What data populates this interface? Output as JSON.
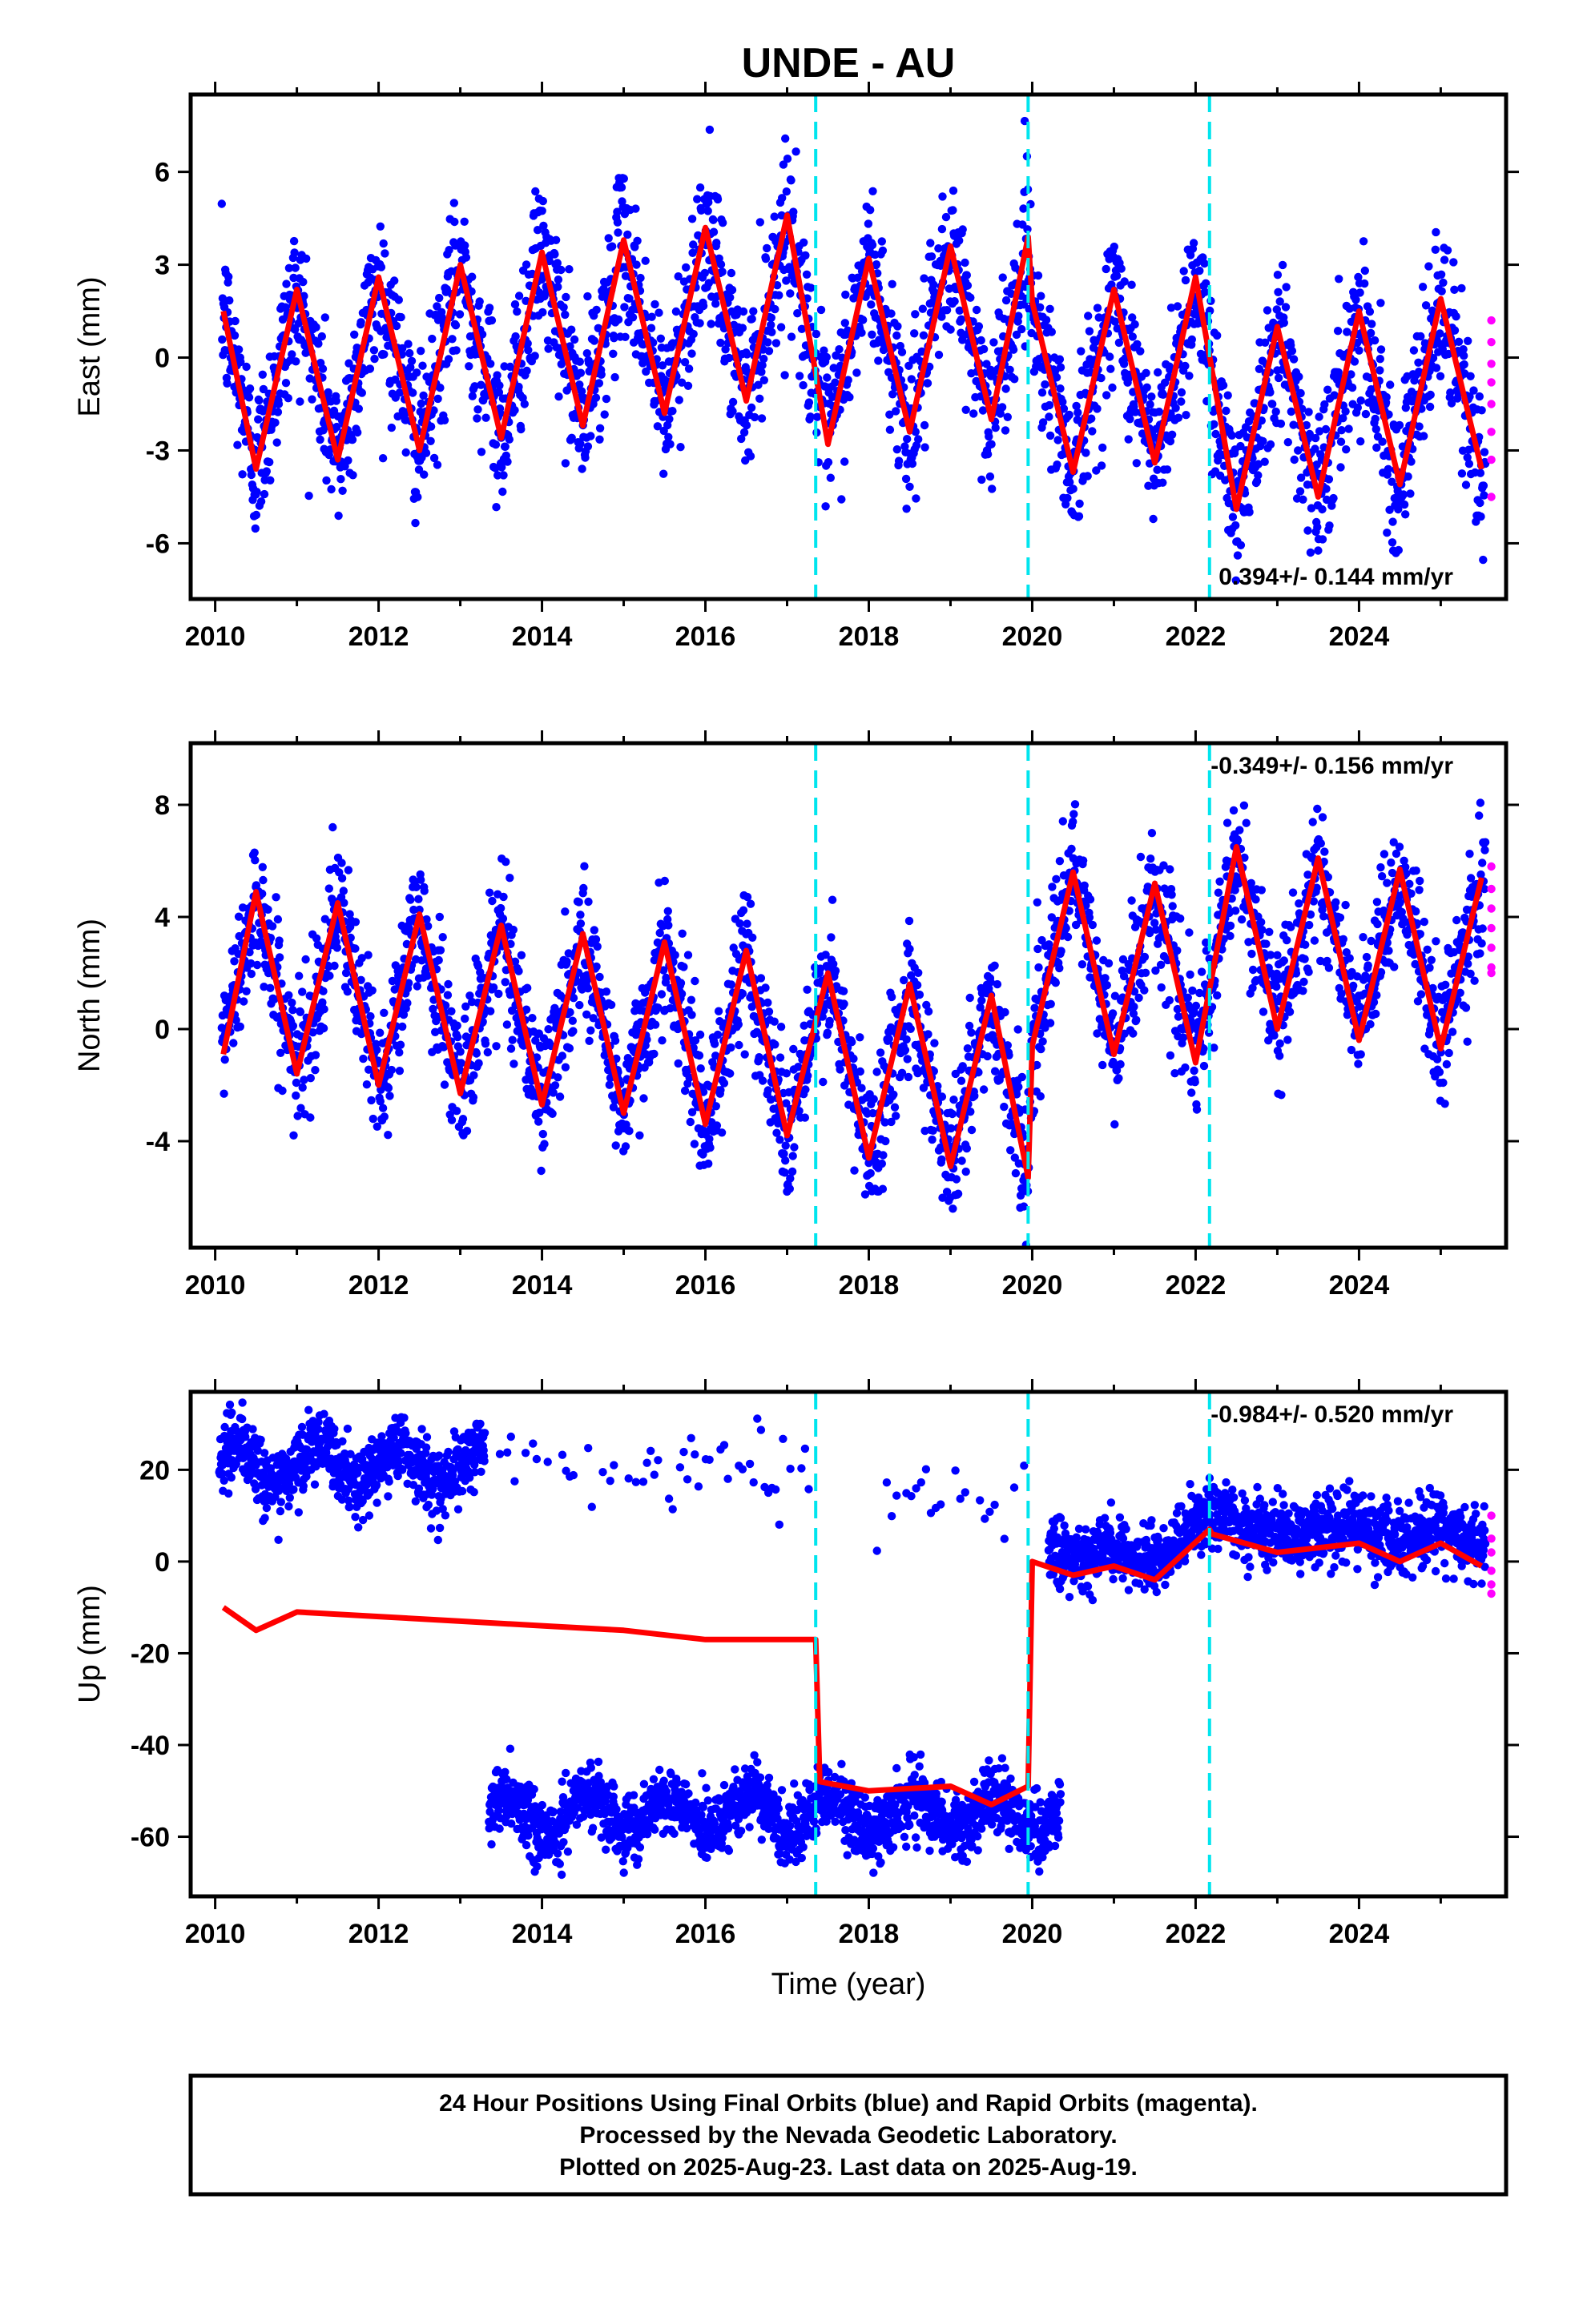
{
  "title": "UNDE - AU",
  "x_axis_label": "Time (year)",
  "footer": {
    "line1": "24 Hour Positions Using Final Orbits (blue) and Rapid Orbits (magenta).",
    "line2": "Processed by the Nevada Geodetic Laboratory.",
    "line3": "Plotted on 2025-Aug-23. Last data on 2025-Aug-19."
  },
  "colors": {
    "final_orbits": "#0000ff",
    "rapid_orbits": "#ff00ff",
    "model": "#ff0000",
    "steps": "#00e5ee"
  },
  "chart_data": [
    {
      "type": "scatter",
      "component": "east",
      "ylabel": "East (mm)",
      "xlim": [
        2009.7,
        2025.8
      ],
      "ylim": [
        -7.8,
        8.5
      ],
      "x_ticks": [
        2010,
        2012,
        2014,
        2016,
        2018,
        2020,
        2022,
        2024
      ],
      "y_ticks": [
        -6,
        -3,
        0,
        3,
        6
      ],
      "rate_text": "0.394+/- 0.144 mm/yr",
      "rate_position": "bottom-right",
      "step_epochs": [
        2017.35,
        2019.95,
        2022.17
      ],
      "series": [
        {
          "name": "Final Orbits",
          "kind": "points",
          "color": "#0000ff",
          "x_range": [
            2010.08,
            2025.55
          ],
          "description": "dense daily scatter about the model with ~1.5 mm spread"
        },
        {
          "name": "Rapid Orbits",
          "kind": "points",
          "color": "#ff00ff",
          "x": [
            2025.62,
            2025.62,
            2025.62,
            2025.62,
            2025.62,
            2025.62,
            2025.62,
            2025.62
          ],
          "y": [
            1.2,
            0.5,
            -0.2,
            -0.8,
            -1.5,
            -2.4,
            -3.3,
            -4.5
          ]
        },
        {
          "name": "Model",
          "kind": "line",
          "color": "#ff0000",
          "x": [
            2010.1,
            2010.5,
            2011.0,
            2011.5,
            2012.0,
            2012.5,
            2013.0,
            2013.5,
            2014.0,
            2014.5,
            2015.0,
            2015.5,
            2016.0,
            2016.5,
            2017.0,
            2017.35,
            2017.5,
            2018.0,
            2018.5,
            2019.0,
            2019.5,
            2019.95,
            2020.0,
            2020.5,
            2021.0,
            2021.5,
            2022.0,
            2022.5,
            2023.0,
            2023.5,
            2024.0,
            2024.5,
            2025.0,
            2025.5
          ],
          "y": [
            1.5,
            -3.6,
            2.2,
            -3.3,
            2.6,
            -3.0,
            3.0,
            -2.6,
            3.4,
            -2.2,
            3.8,
            -1.8,
            4.2,
            -1.4,
            4.6,
            -0.5,
            -2.8,
            3.2,
            -2.4,
            3.6,
            -2.0,
            3.9,
            1.8,
            -3.7,
            2.2,
            -3.4,
            2.6,
            -4.9,
            1.0,
            -4.5,
            1.5,
            -4.1,
            1.9,
            -3.6
          ]
        }
      ]
    },
    {
      "type": "scatter",
      "component": "north",
      "ylabel": "North (mm)",
      "xlim": [
        2009.7,
        2025.8
      ],
      "ylim": [
        -7.8,
        10.2
      ],
      "x_ticks": [
        2010,
        2012,
        2014,
        2016,
        2018,
        2020,
        2022,
        2024
      ],
      "y_ticks": [
        -4,
        0,
        4,
        8
      ],
      "rate_text": "-0.349+/- 0.156 mm/yr",
      "rate_position": "top-right",
      "step_epochs": [
        2017.35,
        2019.95,
        2022.17
      ],
      "series": [
        {
          "name": "Final Orbits",
          "kind": "points",
          "color": "#0000ff",
          "x_range": [
            2010.08,
            2025.55
          ],
          "description": "dense daily scatter about the model with ~1.5 mm spread"
        },
        {
          "name": "Rapid Orbits",
          "kind": "points",
          "color": "#ff00ff",
          "x": [
            2025.62,
            2025.62,
            2025.62,
            2025.62,
            2025.62,
            2025.62,
            2025.62
          ],
          "y": [
            5.8,
            5.0,
            4.3,
            3.6,
            2.9,
            2.2,
            2.0
          ]
        },
        {
          "name": "Model",
          "kind": "line",
          "color": "#ff0000",
          "x": [
            2010.1,
            2010.5,
            2011.0,
            2011.5,
            2012.0,
            2012.5,
            2013.0,
            2013.5,
            2014.0,
            2014.5,
            2015.0,
            2015.5,
            2016.0,
            2016.5,
            2017.0,
            2017.5,
            2018.0,
            2018.5,
            2019.0,
            2019.5,
            2019.95,
            2020.0,
            2020.5,
            2021.0,
            2021.5,
            2022.0,
            2022.5,
            2023.0,
            2023.5,
            2024.0,
            2024.5,
            2025.0,
            2025.5
          ],
          "y": [
            -0.9,
            4.9,
            -1.6,
            4.5,
            -2.0,
            4.1,
            -2.3,
            3.7,
            -2.7,
            3.4,
            -3.0,
            3.1,
            -3.4,
            2.8,
            -3.8,
            2.0,
            -4.6,
            1.6,
            -4.9,
            1.2,
            -5.3,
            -0.6,
            5.6,
            -0.9,
            5.2,
            -1.2,
            6.5,
            0.0,
            6.1,
            -0.4,
            5.7,
            -0.7,
            5.4
          ]
        }
      ]
    },
    {
      "type": "scatter",
      "component": "up",
      "ylabel": "Up (mm)",
      "xlim": [
        2009.7,
        2025.8
      ],
      "ylim": [
        -73,
        37
      ],
      "x_ticks": [
        2010,
        2012,
        2014,
        2016,
        2018,
        2020,
        2022,
        2024
      ],
      "y_ticks": [
        -60,
        -40,
        -20,
        0,
        20
      ],
      "rate_text": "-0.984+/- 0.520 mm/yr",
      "rate_position": "top-right",
      "step_epochs": [
        2017.35,
        2019.95,
        2022.17
      ],
      "series": [
        {
          "name": "Final Orbits",
          "kind": "points",
          "color": "#0000ff",
          "description": "two clusters: ~+22 mm for 2010-2013.3 and ~-55 mm for 2013.3-2020.3; then ~+5 mm after 2020.2"
        },
        {
          "name": "Rapid Orbits",
          "kind": "points",
          "color": "#ff00ff",
          "x": [
            2025.62,
            2025.62,
            2025.62,
            2025.62,
            2025.62,
            2025.62
          ],
          "y": [
            10,
            5,
            2,
            -2,
            -5,
            -7
          ]
        },
        {
          "name": "Model",
          "kind": "line",
          "color": "#ff0000",
          "x": [
            2010.1,
            2010.5,
            2011.0,
            2012.0,
            2013.0,
            2014.0,
            2015.0,
            2016.0,
            2017.0,
            2017.35,
            2017.4,
            2018.0,
            2019.0,
            2019.5,
            2019.95,
            2020.0,
            2020.5,
            2021.0,
            2021.5,
            2022.17,
            2022.2,
            2023.0,
            2024.0,
            2024.5,
            2025.0,
            2025.5
          ],
          "y": [
            -10,
            -15,
            -11,
            -12,
            -13,
            -14,
            -15,
            -17,
            -17,
            -17,
            -48,
            -50,
            -49,
            -53,
            -49,
            0,
            -3,
            -1,
            -4,
            7,
            6,
            2,
            4,
            0,
            4,
            -1
          ]
        }
      ]
    }
  ]
}
